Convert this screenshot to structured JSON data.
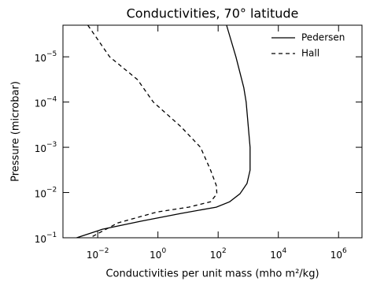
{
  "chart_data": {
    "type": "line",
    "title": "Conductivities, 70° latitude",
    "xlabel": "Conductivities per unit mass (mho m²/kg)",
    "ylabel": "Pressure (microbar)",
    "xscale": "log",
    "yscale": "log",
    "xlim": [
      0.0007,
      6000000
    ],
    "ylim": [
      0.1,
      2e-06
    ],
    "xticks": [
      {
        "value": 0.01,
        "label": "10",
        "exponent": "−2"
      },
      {
        "value": 1,
        "label": "10",
        "exponent": "0"
      },
      {
        "value": 100,
        "label": "10",
        "exponent": "2"
      },
      {
        "value": 10000,
        "label": "10",
        "exponent": "4"
      },
      {
        "value": 1000000,
        "label": "10",
        "exponent": "6"
      }
    ],
    "yticks": [
      {
        "value": 1e-05,
        "label": "10",
        "exponent": "−5"
      },
      {
        "value": 0.0001,
        "label": "10",
        "exponent": "−4"
      },
      {
        "value": 0.001,
        "label": "10",
        "exponent": "−3"
      },
      {
        "value": 0.01,
        "label": "10",
        "exponent": "−2"
      },
      {
        "value": 0.1,
        "label": "10",
        "exponent": "−1"
      }
    ],
    "legend": "upper right",
    "series": [
      {
        "name": "Pedersen",
        "color": "#000000",
        "dash": "solid",
        "x": [
          190,
          390,
          710,
          850,
          1150,
          1150,
          910,
          530,
          240,
          87,
          5.8,
          0.28,
          0.014,
          0.002
        ],
        "y": [
          2e-06,
          1e-05,
          4.8e-05,
          0.0001,
          0.001,
          0.0032,
          0.0063,
          0.0107,
          0.016,
          0.021,
          0.029,
          0.043,
          0.065,
          0.1
        ]
      },
      {
        "name": "Hall",
        "color": "#000000",
        "dash": "dashed",
        "x": [
          0.0047,
          0.025,
          0.21,
          0.7,
          5.8,
          26,
          56,
          87,
          91,
          56,
          10.5,
          0.93,
          0.046,
          0.0056
        ],
        "y": [
          2e-06,
          1e-05,
          3.2e-05,
          0.0001,
          0.00035,
          0.001,
          0.0032,
          0.007,
          0.0107,
          0.016,
          0.021,
          0.027,
          0.047,
          0.1
        ]
      }
    ]
  }
}
